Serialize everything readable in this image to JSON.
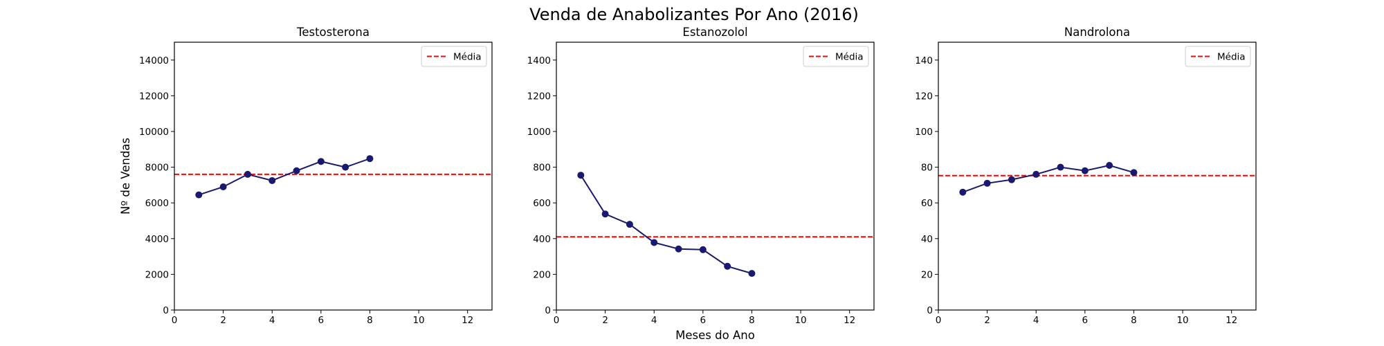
{
  "title": "Venda de Anabolizantes Por Ano (2016)",
  "colors": {
    "line": "#191970",
    "mean": "#ff0000",
    "axes": "#000000",
    "background": "#ffffff"
  },
  "chart_data": [
    {
      "type": "line",
      "title": "Testosterona",
      "xlabel": "",
      "ylabel": "Nº de Vendas",
      "xlim": [
        0,
        13
      ],
      "ylim": [
        0,
        15000
      ],
      "xticks": [
        0,
        2,
        4,
        6,
        8,
        10,
        12
      ],
      "yticks": [
        0,
        2000,
        4000,
        6000,
        8000,
        10000,
        12000,
        14000
      ],
      "grid": false,
      "legend": {
        "position": "top-right",
        "entries": [
          "Média"
        ]
      },
      "x": [
        1,
        2,
        3,
        4,
        5,
        6,
        7,
        8
      ],
      "y": [
        6450,
        6900,
        7600,
        7250,
        7800,
        8320,
        8000,
        8480
      ],
      "mean": 7600,
      "mean_label": "Média"
    },
    {
      "type": "line",
      "title": "Estanozolol",
      "xlabel": "Meses do Ano",
      "ylabel": "",
      "xlim": [
        0,
        13
      ],
      "ylim": [
        0,
        1500
      ],
      "xticks": [
        0,
        2,
        4,
        6,
        8,
        10,
        12
      ],
      "yticks": [
        0,
        200,
        400,
        600,
        800,
        1000,
        1200,
        1400
      ],
      "grid": false,
      "legend": {
        "position": "top-right",
        "entries": [
          "Média"
        ]
      },
      "x": [
        1,
        2,
        3,
        4,
        5,
        6,
        7,
        8
      ],
      "y": [
        755,
        538,
        480,
        378,
        342,
        338,
        245,
        205
      ],
      "mean": 410,
      "mean_label": "Média"
    },
    {
      "type": "line",
      "title": "Nandrolona",
      "xlabel": "",
      "ylabel": "",
      "xlim": [
        0,
        13
      ],
      "ylim": [
        0,
        150
      ],
      "xticks": [
        0,
        2,
        4,
        6,
        8,
        10,
        12
      ],
      "yticks": [
        0,
        20,
        40,
        60,
        80,
        100,
        120,
        140
      ],
      "grid": false,
      "legend": {
        "position": "top-right",
        "entries": [
          "Média"
        ]
      },
      "x": [
        1,
        2,
        3,
        4,
        5,
        6,
        7,
        8
      ],
      "y": [
        66,
        71,
        73,
        76,
        80,
        78,
        81,
        77
      ],
      "mean": 75.3,
      "mean_label": "Média"
    }
  ]
}
